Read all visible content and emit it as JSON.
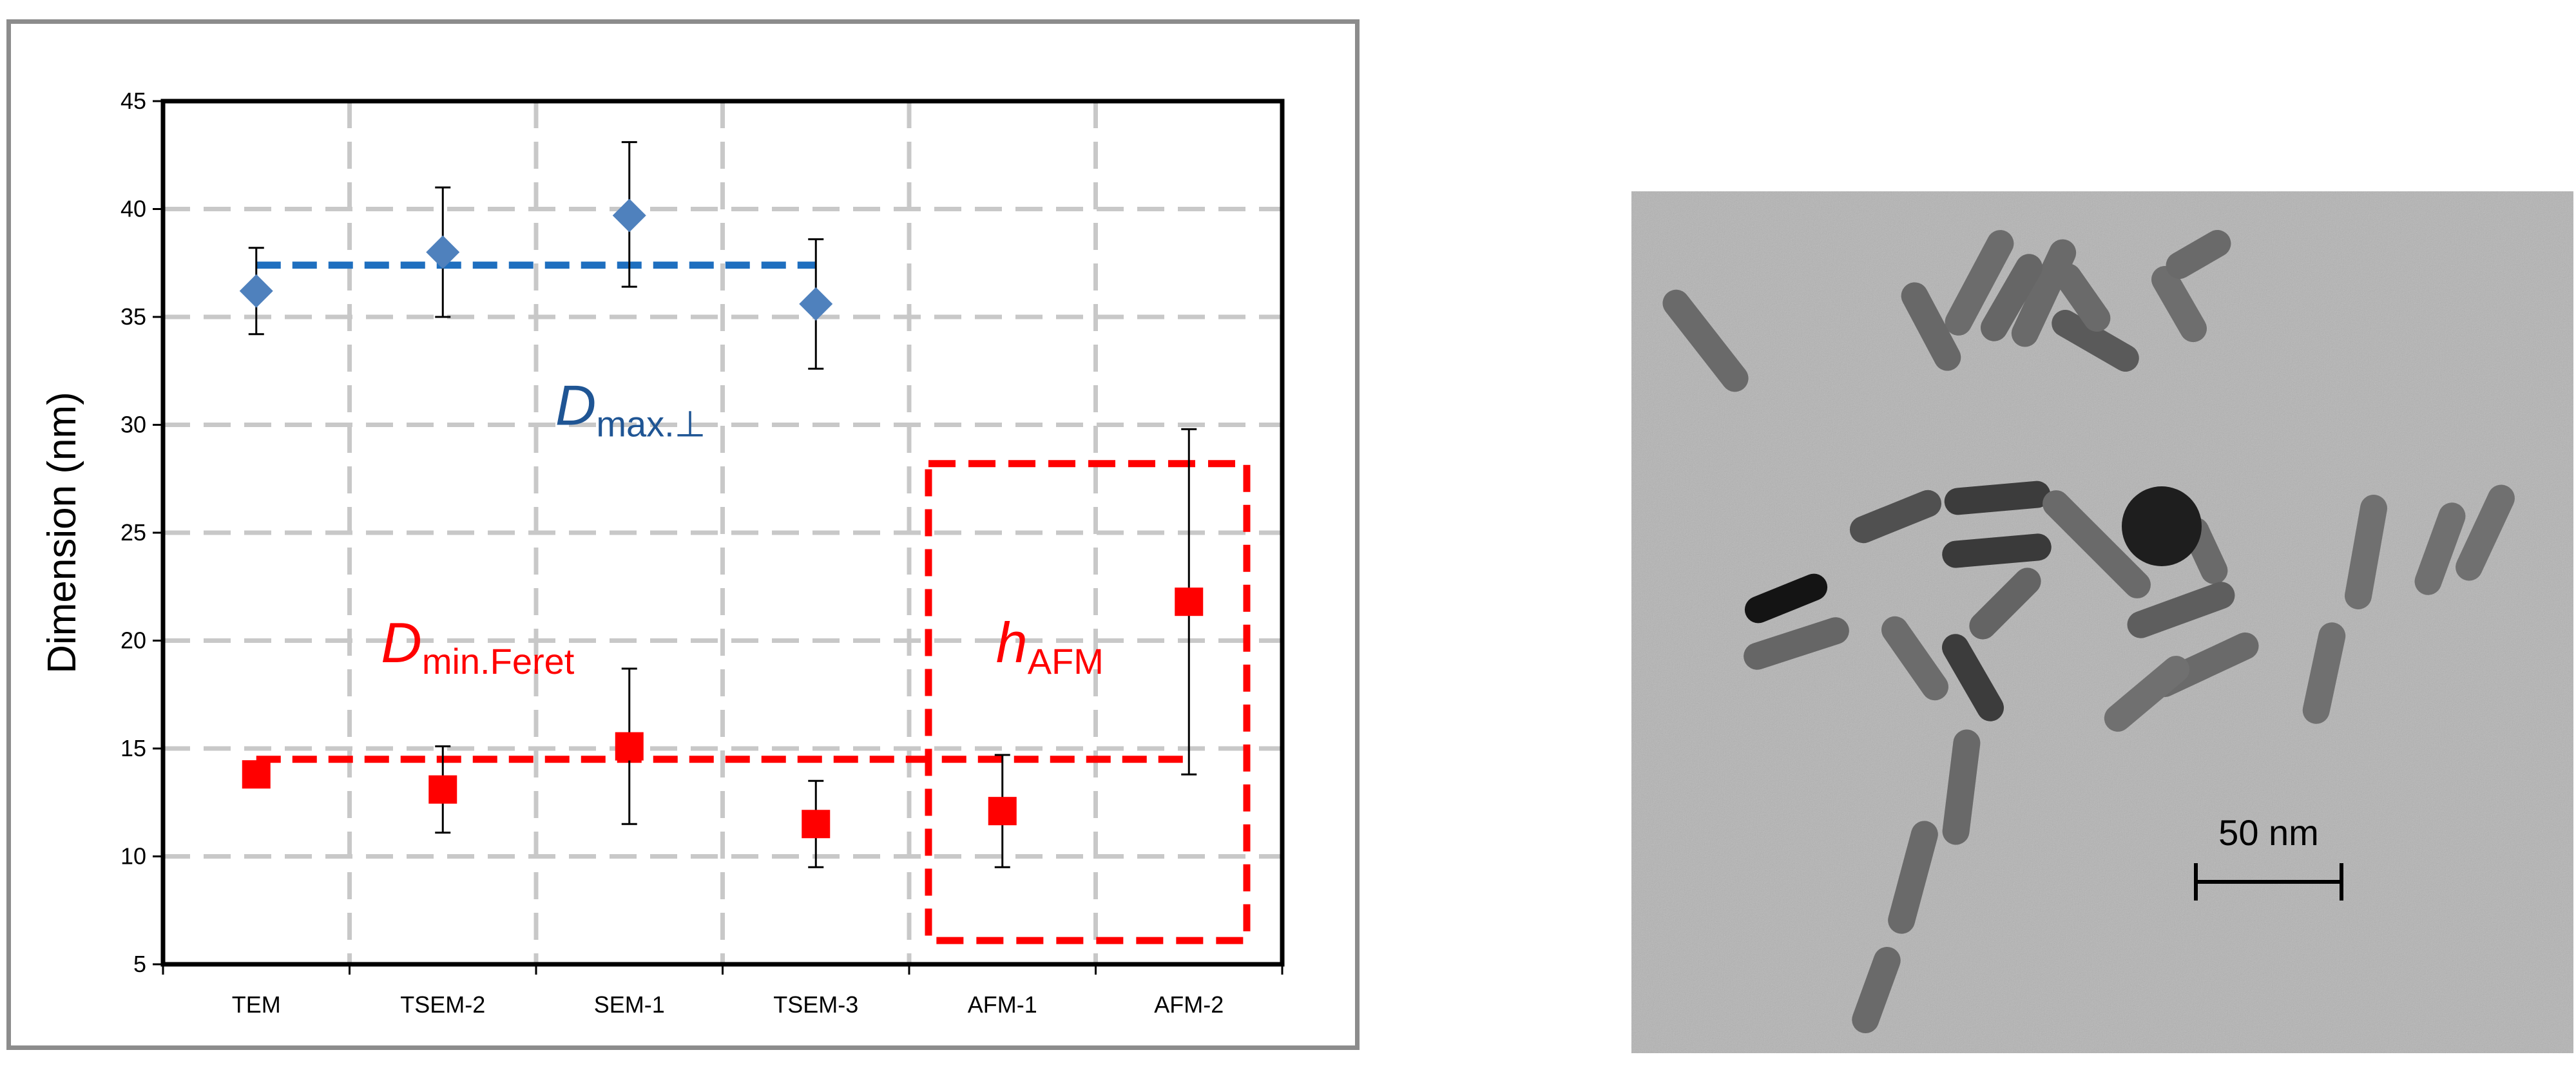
{
  "chart_data": {
    "type": "scatter",
    "title": "",
    "xlabel": "",
    "ylabel": "Dimension (nm)",
    "ylim": [
      5,
      45
    ],
    "yticks": [
      5,
      10,
      15,
      20,
      25,
      30,
      35,
      40,
      45
    ],
    "categories": [
      "TEM",
      "TSEM-2",
      "SEM-1",
      "TSEM-3",
      "AFM-1",
      "AFM-2"
    ],
    "grid": true,
    "series": [
      {
        "name": "D max.⊥",
        "marker": "diamond",
        "color": "#4f81bd",
        "categories": [
          "TEM",
          "TSEM-2",
          "SEM-1",
          "TSEM-3"
        ],
        "values": [
          36.2,
          38.0,
          39.7,
          35.6
        ],
        "err_low": [
          34.2,
          35.0,
          36.4,
          32.6
        ],
        "err_high": [
          38.2,
          41.0,
          43.1,
          38.6
        ],
        "mean_line": 37.4
      },
      {
        "name": "D min.Feret",
        "marker": "square",
        "color": "#ff0000",
        "categories": [
          "TEM",
          "TSEM-2",
          "SEM-1",
          "TSEM-3",
          "AFM-1"
        ],
        "values": [
          13.8,
          13.1,
          15.1,
          11.5,
          12.1
        ],
        "err_low": [
          null,
          11.1,
          11.5,
          9.5,
          9.5
        ],
        "err_high": [
          null,
          15.1,
          18.7,
          13.5,
          14.7
        ],
        "mean_line": 14.5
      },
      {
        "name": "h AFM",
        "marker": "square",
        "color": "#ff0000",
        "categories": [
          "AFM-2"
        ],
        "values": [
          21.8
        ],
        "err_low": [
          13.8
        ],
        "err_high": [
          29.8
        ]
      }
    ],
    "annotations": [
      {
        "main": "D",
        "sub": "max.⊥",
        "color": "#1f5594"
      },
      {
        "main": "D",
        "sub": "min.Feret",
        "color": "#ff0000"
      },
      {
        "main": "h",
        "sub": "AFM",
        "color": "#ff0000"
      }
    ],
    "highlight_box": {
      "categories": [
        "AFM-1",
        "AFM-2"
      ],
      "y_range": [
        6.1,
        28.2
      ],
      "color": "#ff0000"
    }
  },
  "micrograph": {
    "scale_bar_label": "50 nm"
  }
}
